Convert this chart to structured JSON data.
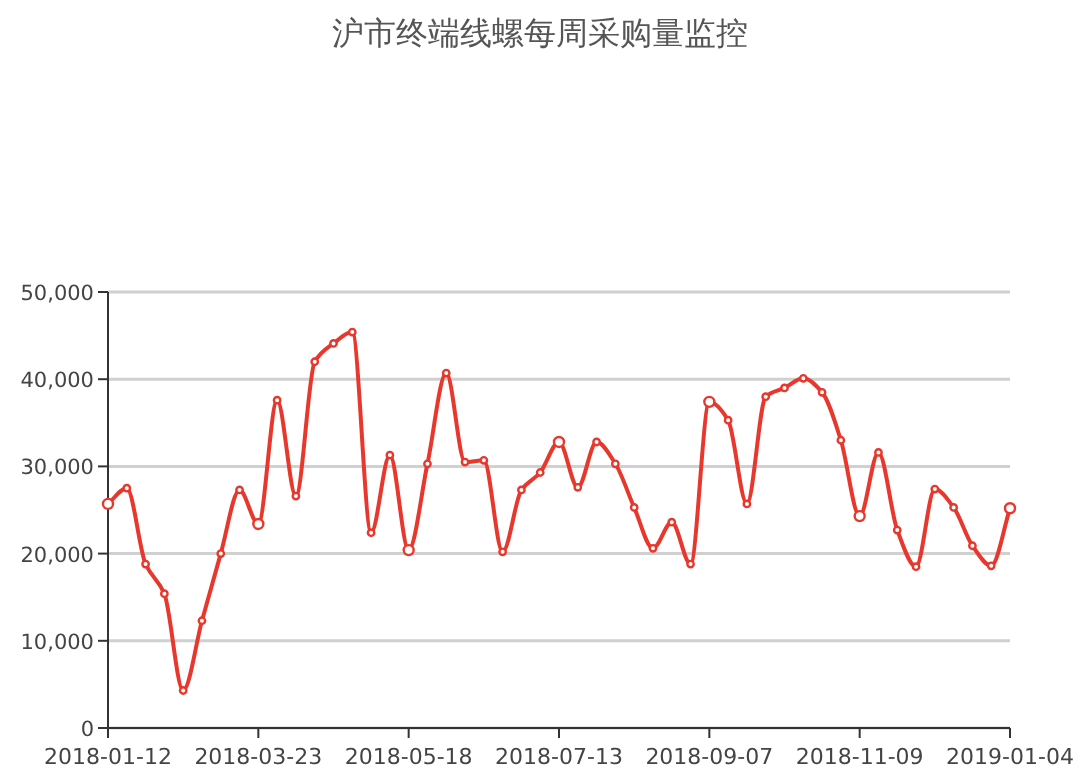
{
  "chart_data": {
    "type": "line",
    "title": "沪市终端线螺每周采购量监控",
    "categories": [
      "2018-01-12",
      null,
      null,
      null,
      null,
      null,
      null,
      null,
      "2018-03-23",
      null,
      null,
      null,
      null,
      null,
      null,
      null,
      "2018-05-18",
      null,
      null,
      null,
      null,
      null,
      null,
      null,
      "2018-07-13",
      null,
      null,
      null,
      null,
      null,
      null,
      null,
      "2018-09-07",
      null,
      null,
      null,
      null,
      null,
      null,
      null,
      "2018-11-09",
      null,
      null,
      null,
      null,
      null,
      null,
      null,
      "2019-01-04"
    ],
    "series": [
      {
        "color": "#e8372c",
        "values": [
          25700,
          27500,
          18800,
          15400,
          4300,
          12300,
          20000,
          27300,
          23400,
          37600,
          26600,
          42000,
          44100,
          45400,
          22400,
          31300,
          20400,
          30300,
          40700,
          30500,
          30700,
          20200,
          27300,
          29300,
          32800,
          27600,
          32800,
          30300,
          25300,
          20600,
          23600,
          18800,
          37400,
          35300,
          25700,
          38000,
          39000,
          40100,
          38500,
          33000,
          24300,
          31600,
          22700,
          18500,
          27400,
          25300,
          20900,
          18600,
          25200
        ]
      }
    ],
    "ylim": [
      0,
      50000
    ],
    "yticks": [
      {
        "value": 0,
        "label": "0"
      },
      {
        "value": 10000,
        "label": "10,000"
      },
      {
        "value": 20000,
        "label": "20,000"
      },
      {
        "value": 30000,
        "label": "30,000"
      },
      {
        "value": 40000,
        "label": "40,000"
      },
      {
        "value": 50000,
        "label": "50,000"
      }
    ],
    "grid": "y",
    "marker": "circle",
    "line_style": "solid"
  }
}
